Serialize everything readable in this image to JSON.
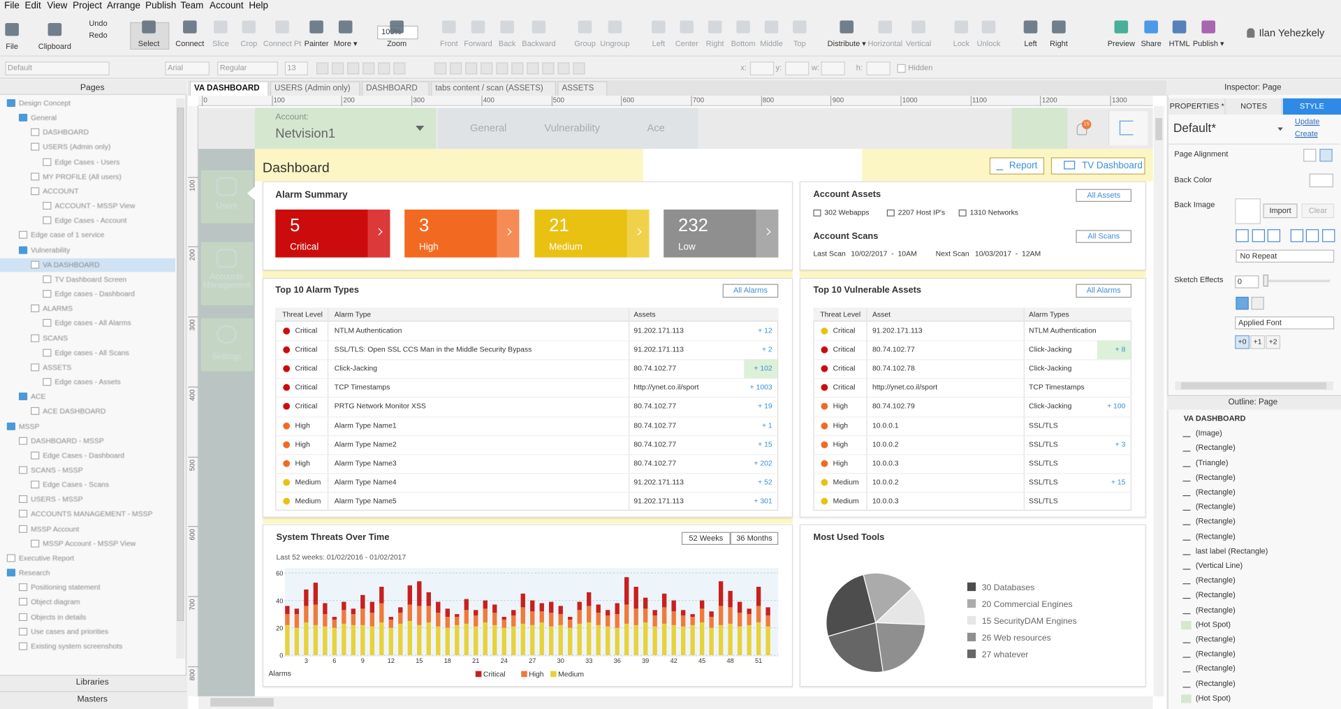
{
  "menu": [
    "File",
    "Edit",
    "View",
    "Project",
    "Arrange",
    "Publish",
    "Team",
    "Account",
    "Help"
  ],
  "toolbar": [
    "File",
    "Clipboard",
    "Undo",
    "Redo",
    "Select",
    "Connect",
    "Slice",
    "Crop",
    "Connect Pt",
    "Painter",
    "More ▾",
    "100%",
    "Zoom",
    "Front",
    "Forward",
    "Back",
    "Backward",
    "Group",
    "Ungroup",
    "Left",
    "Center",
    "Right",
    "Bottom",
    "Middle",
    "Top",
    "Distribute ▾",
    "Horizontal",
    "Vertical",
    "Lock",
    "Unlock",
    "Left",
    "Right",
    "Preview",
    "Share",
    "HTML",
    "Publish ▾",
    "Ilan Yehezkely"
  ],
  "format_bar": [
    "Default",
    "Arial",
    "Regular",
    "13",
    "x:",
    "y:",
    "w:",
    "h:",
    "Hidden"
  ],
  "pages": {
    "title": "Pages",
    "items": [
      "Design Concept",
      "General",
      "DASHBOARD",
      "USERS (Admin only)",
      "Edge Cases - Users",
      "MY PROFILE (All users)",
      "ACCOUNT",
      "ACCOUNT - MSSP View",
      "Edge Cases - Account",
      "Edge case of 1 service",
      "Vulnerability",
      "VA DASHBOARD",
      "TV Dashboard Screen",
      "Edge cases - Dashboard",
      "ALARMS",
      "Edge cases - All Alarms",
      "SCANS",
      "Edge cases - All Scans",
      "ASSETS",
      "Edge cases - Assets",
      "ACE",
      "ACE DASHBOARD",
      "MSSP",
      "DASHBOARD - MSSP",
      "Edge Cases - Dashboard",
      "SCANS - MSSP",
      "Edge Cases - Scans",
      "USERS - MSSP",
      "ACCOUNTS MANAGEMENT - MSSP",
      "MSSP Account",
      "MSSP Account - MSSP View",
      "Executive Report",
      "Research",
      "Positioning statement",
      "Object diagram",
      "Objects in details",
      "Use cases and priorities",
      "Existing system screenshots"
    ],
    "libraries": "Libraries",
    "masters": "Masters"
  },
  "tabs": [
    "VA DASHBOARD",
    "USERS (Admin only)",
    "DASHBOARD",
    "tabs content / scan (ASSETS)",
    "ASSETS"
  ],
  "ruler": {
    "horizontal": [
      0,
      100,
      200,
      300,
      400,
      500,
      600,
      700,
      800,
      900,
      1000,
      1100,
      1200,
      1300
    ],
    "vertical": [
      100,
      200,
      300,
      400,
      500,
      600,
      700,
      800
    ]
  },
  "canvas": {
    "account_label": "Account:",
    "account_name": "Netvision1",
    "nav": [
      "General",
      "Vulnerability",
      "Ace"
    ],
    "notifications": "15",
    "sidebar": [
      "Users",
      "Accounts Management",
      "Settings"
    ],
    "title": "Dashboard",
    "report": "Report",
    "tv_dashboard": "TV Dashboard",
    "alarm_summary": {
      "title": "Alarm Summary",
      "cards": [
        {
          "value": 5,
          "label": "Critical"
        },
        {
          "value": 3,
          "label": "High"
        },
        {
          "value": 21,
          "label": "Medium"
        },
        {
          "value": 232,
          "label": "Low"
        }
      ]
    },
    "account_assets": {
      "title": "Account Assets",
      "button": "All Assets",
      "items": [
        "302 Webapps",
        "2207 Host IP's",
        "1310 Networks"
      ]
    },
    "account_scans": {
      "title": "Account Scans",
      "button": "All Scans",
      "last_label": "Last Scan",
      "last_value": "10/02/2017  -  10AM",
      "next_label": "Next Scan",
      "next_value": "10/03/2017  -  12AM"
    },
    "alarm_types": {
      "title": "Top 10 Alarm Types",
      "button": "All Alarms",
      "headers": [
        "Threat Level",
        "Alarm Type",
        "Assets"
      ],
      "rows": [
        [
          "Critical",
          "NTLM Authentication",
          "91.202.171.113",
          "+ 12"
        ],
        [
          "Critical",
          "SSL/TLS: Open SSL CCS Man in the Middle Security Bypass",
          "91.202.171.113",
          "+ 2"
        ],
        [
          "Critical",
          "Click-Jacking",
          "80.74.102.77",
          "+ 102"
        ],
        [
          "Critical",
          "TCP Timestamps",
          "http://ynet.co.il/sport",
          "+ 1003"
        ],
        [
          "Critical",
          "PRTG Network Monitor XSS",
          "80.74.102.77",
          "+ 19"
        ],
        [
          "High",
          "Alarm Type Name1",
          "80.74.102.77",
          "+ 1"
        ],
        [
          "High",
          "Alarm Type Name2",
          "80.74.102.77",
          "+ 15"
        ],
        [
          "High",
          "Alarm Type Name3",
          "80.74.102.77",
          "+ 202"
        ],
        [
          "Medium",
          "Alarm Type Name4",
          "91.202.171.113",
          "+ 52"
        ],
        [
          "Medium",
          "Alarm Type Name5",
          "91.202.171.113",
          "+ 301"
        ]
      ]
    },
    "vulnerable_assets": {
      "title": "Top 10 Vulnerable Assets",
      "button": "All Alarms",
      "headers": [
        "Threat Level",
        "Asset",
        "Alarm Types"
      ],
      "rows": [
        [
          "Critical",
          "91.202.171.113",
          "NTLM Authentication",
          null
        ],
        [
          "Critical",
          "80.74.102.77",
          "Click-Jacking",
          "+ 8"
        ],
        [
          "Critical",
          "80.74.102.78",
          "Click-Jacking",
          null
        ],
        [
          "Critical",
          "http://ynet.co.il/sport",
          "TCP Timestamps",
          null
        ],
        [
          "High",
          "80.74.102.79",
          "Click-Jacking",
          "+ 100"
        ],
        [
          "High",
          "10.0.0.1",
          "SSL/TLS",
          null
        ],
        [
          "High",
          "10.0.0.2",
          "SSL/TLS",
          "+ 3"
        ],
        [
          "High",
          "10.0.0.3",
          "SSL/TLS",
          null
        ],
        [
          "Medium",
          "10.0.0.2",
          "SSL/TLS",
          "+ 15"
        ],
        [
          "Medium",
          "10.0.0.3",
          "SSL/TLS",
          null
        ]
      ]
    },
    "threats": {
      "title": "System Threats Over Time",
      "buttons": [
        "52 Weeks",
        "36 Months"
      ],
      "subtitle": "Last 52 weeks: 01/02/2016 - 01/02/2017",
      "chart": {
        "type": "bar",
        "stacked": true,
        "axis_label": "Alarms",
        "categories": [
          null,
          null,
          3,
          null,
          null,
          6,
          null,
          null,
          9,
          null,
          null,
          12,
          null,
          null,
          15,
          null,
          null,
          18,
          null,
          null,
          21,
          null,
          null,
          24,
          null,
          null,
          27,
          null,
          null,
          30,
          null,
          null,
          33,
          null,
          null,
          36,
          null,
          null,
          39,
          null,
          null,
          42,
          null,
          null,
          45,
          null,
          null,
          48,
          null,
          null,
          51,
          null
        ],
        "ylim": [
          0,
          60
        ],
        "yticks": [
          0,
          20,
          40,
          60
        ],
        "grid": true,
        "series": [
          {
            "name": "Critical",
            "color": "#c8201e",
            "values": [
              6,
              4,
              12,
              16,
              8,
              2,
              6,
              4,
              10,
              8,
              12,
              2,
              4,
              14,
              18,
              10,
              8,
              6,
              2,
              8,
              4,
              6,
              6,
              2,
              4,
              10,
              8,
              6,
              8,
              6,
              2,
              6,
              10,
              6,
              4,
              8,
              20,
              16,
              8,
              4,
              10,
              8,
              4,
              2,
              6,
              4,
              18,
              12,
              8,
              4,
              14,
              6
            ]
          },
          {
            "name": "High",
            "color": "#f07a3a",
            "values": [
              8,
              10,
              12,
              15,
              9,
              6,
              10,
              8,
              12,
              10,
              14,
              6,
              8,
              12,
              14,
              12,
              10,
              8,
              6,
              10,
              8,
              10,
              9,
              6,
              8,
              12,
              10,
              8,
              10,
              8,
              6,
              10,
              12,
              9,
              8,
              10,
              14,
              12,
              10,
              8,
              12,
              10,
              8,
              6,
              10,
              8,
              14,
              12,
              10,
              8,
              12,
              8
            ]
          },
          {
            "name": "Medium",
            "color": "#e8d23a",
            "values": [
              22,
              20,
              24,
              22,
              21,
              20,
              23,
              22,
              22,
              21,
              24,
              20,
              23,
              25,
              22,
              24,
              21,
              20,
              22,
              23,
              21,
              24,
              22,
              20,
              21,
              23,
              22,
              24,
              21,
              22,
              20,
              23,
              24,
              22,
              21,
              20,
              23,
              22,
              24,
              21,
              23,
              22,
              21,
              22,
              24,
              20,
              22,
              23,
              21,
              22,
              24,
              21
            ]
          }
        ]
      }
    },
    "tools": {
      "title": "Most Used Tools",
      "chart": {
        "type": "pie",
        "categories": [
          "30 Databases",
          "20 Commercial Engines",
          "15 SecurityDAM Engines",
          "26 Web resources",
          "27 whatever"
        ],
        "values": [
          30,
          20,
          15,
          26,
          27
        ],
        "colors": [
          "#4d4d4d",
          "#ababab",
          "#e6e6e6",
          "#8f8f8f",
          "#666666"
        ]
      }
    }
  },
  "inspector": {
    "title": "Inspector: Page",
    "tabs": [
      "PROPERTIES *",
      "NOTES",
      "STYLE"
    ],
    "style_name": "Default*",
    "update": "Update",
    "create": "Create",
    "page_alignment": "Page Alignment",
    "back_color": "Back Color",
    "back_image": "Back Image",
    "import": "Import",
    "clear": "Clear",
    "repeat": "No Repeat",
    "sketch_effects": "Sketch Effects",
    "sketch_value": "0",
    "font": "Applied Font",
    "line_options": [
      "+0",
      "+1",
      "+2"
    ]
  },
  "outline": {
    "title": "Outline: Page",
    "items": [
      "VA DASHBOARD",
      "(Image)",
      "(Rectangle)",
      "(Triangle)",
      "(Rectangle)",
      "(Rectangle)",
      "(Rectangle)",
      "(Rectangle)",
      "(Rectangle)",
      "last label (Rectangle)",
      "(Vertical Line)",
      "(Rectangle)",
      "(Rectangle)",
      "(Rectangle)",
      "(Hot Spot)",
      "(Rectangle)",
      "(Rectangle)",
      "(Rectangle)",
      "(Rectangle)",
      "(Hot Spot)"
    ]
  }
}
